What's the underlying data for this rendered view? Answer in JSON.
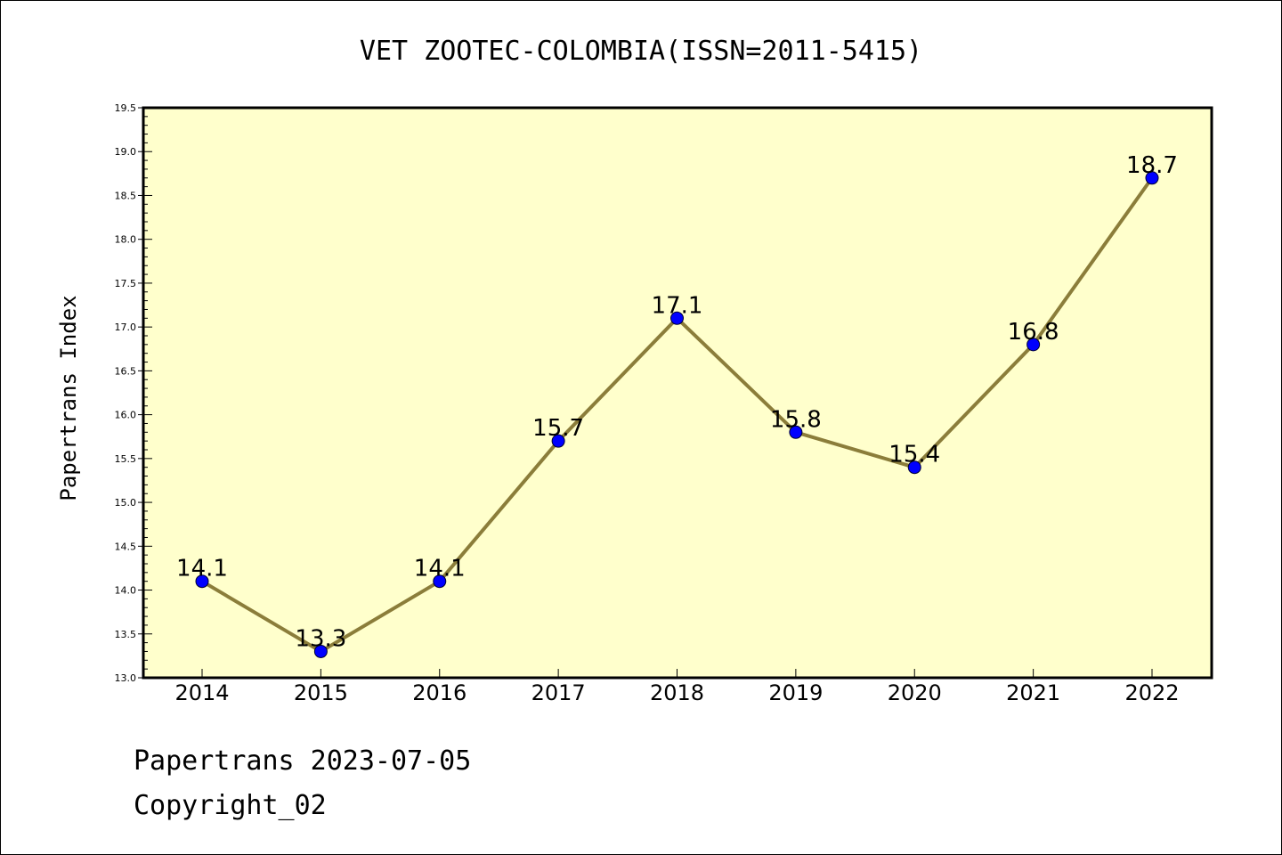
{
  "chart_data": {
    "type": "line",
    "title": "VET ZOOTEC-COLOMBIA(ISSN=2011-5415)",
    "xlabel": "",
    "ylabel": "Papertrans Index",
    "x": [
      "2014",
      "2015",
      "2016",
      "2017",
      "2018",
      "2019",
      "2020",
      "2021",
      "2022"
    ],
    "series": [
      {
        "values": [
          14.1,
          13.3,
          14.1,
          15.7,
          17.1,
          15.8,
          15.4,
          16.8,
          18.7
        ],
        "labels": [
          "14.1",
          "13.3",
          "14.1",
          "15.7",
          "17.1",
          "15.8",
          "15.4",
          "16.8",
          "18.7"
        ]
      }
    ],
    "ylim": [
      13.0,
      19.5
    ],
    "yticks": [
      "13.0",
      "13.5",
      "14.0",
      "14.5",
      "15.0",
      "15.5",
      "16.0",
      "16.5",
      "17.0",
      "17.5",
      "18.0",
      "18.5",
      "19.0",
      "19.5"
    ],
    "grid": false,
    "legend": "none",
    "colors": {
      "plot_background": "#ffffcc",
      "line": "#8b7d3a",
      "marker": "#0000ff"
    }
  },
  "footer": {
    "line1": "Papertrans 2023-07-05",
    "line2": "Copyright_02"
  }
}
